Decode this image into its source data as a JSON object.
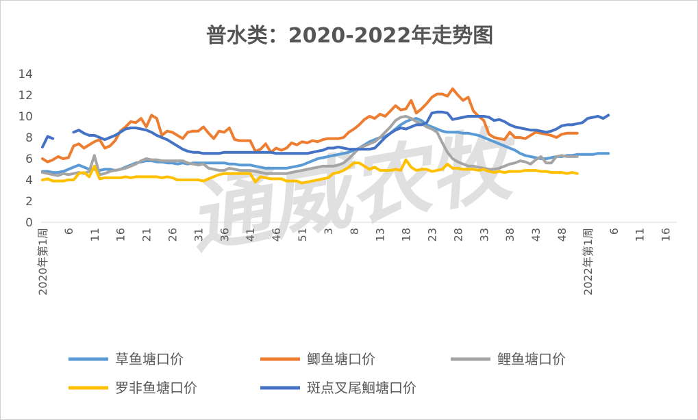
{
  "chart_data": {
    "type": "line",
    "title": "普水类：2020-2022年走势图",
    "watermark": "通威农牧",
    "ylim": [
      0,
      14
    ],
    "y_ticks": [
      "0",
      "2",
      "4",
      "6",
      "8",
      "10",
      "12",
      "14"
    ],
    "x_ticks": [
      "2020年第1周",
      "6",
      "11",
      "16",
      "21",
      "26",
      "31",
      "36",
      "41",
      "46",
      "51",
      "3",
      "8",
      "13",
      "18",
      "23",
      "28",
      "33",
      "38",
      "43",
      "48",
      "2022年第1周",
      "6",
      "11",
      "16"
    ],
    "grid": false,
    "legend_position": "bottom",
    "series": [
      {
        "name": "草鱼塘口价",
        "color": "#5B9BD5",
        "values": [
          4.8,
          4.8,
          4.7,
          4.7,
          4.8,
          5.0,
          5.2,
          5.4,
          5.2,
          5.0,
          5.0,
          4.9,
          5.0,
          5.0,
          4.9,
          5.0,
          5.2,
          5.4,
          5.6,
          5.7,
          5.8,
          5.8,
          5.7,
          5.7,
          5.6,
          5.6,
          5.5,
          5.6,
          5.5,
          5.6,
          5.6,
          5.6,
          5.6,
          5.6,
          5.6,
          5.6,
          5.5,
          5.5,
          5.4,
          5.4,
          5.4,
          5.3,
          5.2,
          5.1,
          5.1,
          5.1,
          5.1,
          5.1,
          5.2,
          5.3,
          5.4,
          5.6,
          5.8,
          6.0,
          6.1,
          6.2,
          6.3,
          6.4,
          6.5,
          6.6,
          6.8,
          7.0,
          7.3,
          7.6,
          7.8,
          8.0,
          8.1,
          8.4,
          8.8,
          9.2,
          9.5,
          9.7,
          9.8,
          9.6,
          9.2,
          9.0,
          8.8,
          8.6,
          8.5,
          8.5,
          8.5,
          8.4,
          8.4,
          8.3,
          8.2,
          8.0,
          7.8,
          7.6,
          7.4,
          7.2,
          7.0,
          6.8,
          6.5,
          6.3,
          6.2,
          6.1,
          6.0,
          6.0,
          6.1,
          6.2,
          6.2,
          6.3,
          6.3,
          6.4,
          6.4,
          6.4,
          6.4,
          6.5,
          6.5,
          6.5
        ],
        "start_index": 0
      },
      {
        "name": "鲫鱼塘口价",
        "color": "#ED7D31",
        "values": [
          6.0,
          5.7,
          5.9,
          6.2,
          6.0,
          6.1,
          7.2,
          7.4,
          7.0,
          7.3,
          7.6,
          7.8,
          7.0,
          7.2,
          7.7,
          8.6,
          9.0,
          9.5,
          9.4,
          9.8,
          9.0,
          10.1,
          9.8,
          8.2,
          8.6,
          8.5,
          8.2,
          7.9,
          8.5,
          8.6,
          8.6,
          9.0,
          8.4,
          7.9,
          8.6,
          8.5,
          8.9,
          7.8,
          7.7,
          7.7,
          7.7,
          6.7,
          6.9,
          7.4,
          6.6,
          7.0,
          6.8,
          7.0,
          7.5,
          7.3,
          7.6,
          7.5,
          7.7,
          7.6,
          7.8,
          7.9,
          7.9,
          7.9,
          8.0,
          8.5,
          8.8,
          9.2,
          9.7,
          10.0,
          9.8,
          10.2,
          10.0,
          10.5,
          11.0,
          10.6,
          10.7,
          11.5,
          10.3,
          10.7,
          11.2,
          11.8,
          12.1,
          12.1,
          11.9,
          12.6,
          12.0,
          11.5,
          11.8,
          10.5,
          10.0,
          9.6,
          8.3,
          8.0,
          7.9,
          7.8,
          8.5,
          8.0,
          8.0,
          7.9,
          8.2,
          8.5,
          8.4,
          8.3,
          8.2,
          8.0,
          8.3,
          8.4,
          8.4,
          8.4
        ],
        "start_index": 0
      },
      {
        "name": "鲤鱼塘口价",
        "color": "#A5A5A5",
        "values": [
          4.7,
          4.6,
          4.5,
          4.4,
          4.6,
          4.5,
          4.6,
          4.7,
          4.6,
          4.8,
          6.3,
          4.5,
          4.6,
          4.8,
          4.9,
          5.0,
          5.1,
          5.3,
          5.5,
          5.8,
          6.0,
          5.9,
          5.9,
          5.8,
          5.8,
          5.8,
          5.8,
          5.8,
          5.6,
          5.5,
          5.4,
          5.5,
          5.1,
          5.0,
          4.9,
          4.9,
          5.1,
          5.0,
          4.9,
          4.9,
          4.9,
          4.8,
          4.7,
          4.6,
          4.6,
          4.6,
          4.6,
          4.6,
          4.7,
          4.8,
          4.9,
          5.0,
          5.1,
          5.2,
          5.3,
          5.3,
          5.3,
          5.4,
          5.6,
          6.0,
          6.5,
          7.0,
          7.2,
          7.4,
          7.6,
          8.0,
          8.5,
          9.0,
          9.6,
          9.9,
          10.0,
          9.8,
          9.5,
          9.3,
          9.0,
          8.8,
          8.5,
          7.5,
          6.6,
          6.0,
          5.7,
          5.5,
          5.3,
          5.3,
          5.2,
          5.1,
          5.0,
          5.0,
          5.1,
          5.3,
          5.5,
          5.6,
          5.8,
          5.7,
          5.5,
          5.9,
          6.2,
          5.6,
          5.6,
          6.2,
          6.3,
          6.2,
          6.2,
          6.2
        ],
        "start_index": 0
      },
      {
        "name": "罗非鱼塘口价",
        "color": "#FFC000",
        "values": [
          4.0,
          4.1,
          3.9,
          3.9,
          3.9,
          4.0,
          4.0,
          4.6,
          4.7,
          4.3,
          5.3,
          4.1,
          4.2,
          4.2,
          4.2,
          4.2,
          4.3,
          4.2,
          4.3,
          4.3,
          4.3,
          4.3,
          4.3,
          4.2,
          4.3,
          4.2,
          4.0,
          4.0,
          4.0,
          4.0,
          4.0,
          3.9,
          4.1,
          4.3,
          4.5,
          4.6,
          4.6,
          4.6,
          4.6,
          4.6,
          4.6,
          3.8,
          4.3,
          4.2,
          4.1,
          4.1,
          4.1,
          3.9,
          3.9,
          3.9,
          3.7,
          3.8,
          3.9,
          4.0,
          4.1,
          4.2,
          4.6,
          4.7,
          4.9,
          5.2,
          5.6,
          5.6,
          5.3,
          5.0,
          5.2,
          4.9,
          4.9,
          4.9,
          5.0,
          4.9,
          5.9,
          5.2,
          4.9,
          5.0,
          5.0,
          4.8,
          4.9,
          5.0,
          5.5,
          5.1,
          5.1,
          5.0,
          5.0,
          5.0,
          4.9,
          5.0,
          4.8,
          4.7,
          4.8,
          4.7,
          4.8,
          4.8,
          4.8,
          4.9,
          4.9,
          4.9,
          4.8,
          4.8,
          4.7,
          4.7,
          4.7,
          4.6,
          4.7,
          4.6
        ],
        "start_index": 0
      },
      {
        "name": "斑点叉尾鮰塘口价",
        "color": "#4472C4",
        "segments": [
          {
            "start_index": 0,
            "values": [
              7.1,
              8.1,
              7.9
            ]
          },
          {
            "start_index": 6,
            "values": [
              8.5,
              8.7,
              8.4,
              8.2,
              8.2,
              8.0,
              7.8,
              8.0,
              8.2,
              8.5,
              8.8,
              8.9,
              8.9,
              8.8,
              8.7,
              8.5,
              8.2,
              8.0,
              7.8,
              7.5,
              7.2,
              6.9,
              6.7,
              6.6,
              6.6,
              6.5,
              6.5,
              6.5,
              6.5,
              6.6,
              6.6,
              6.6,
              6.6,
              6.6,
              6.6,
              6.6,
              6.6,
              6.6,
              6.6,
              6.5,
              6.5,
              6.5,
              6.5,
              6.5,
              6.5,
              6.5,
              6.6,
              6.7,
              6.8,
              7.0,
              7.0,
              7.1,
              7.0,
              6.9,
              6.9,
              6.9,
              6.9,
              6.9,
              7.0,
              7.5,
              8.0,
              8.4,
              8.7,
              8.9,
              8.8,
              9.0,
              9.2,
              9.2,
              9.4,
              10.3,
              10.4,
              10.4,
              10.3,
              9.7,
              9.8,
              9.9,
              10.0,
              10.0,
              10.0,
              10.0,
              9.9,
              9.6,
              9.7,
              9.5,
              9.2,
              9.0,
              8.9,
              8.8,
              8.7,
              8.7,
              8.6,
              8.5,
              8.6,
              8.8,
              9.1,
              9.2,
              9.2,
              9.3,
              9.4,
              9.8,
              9.9,
              10.0,
              9.8,
              10.1
            ]
          }
        ]
      }
    ]
  }
}
